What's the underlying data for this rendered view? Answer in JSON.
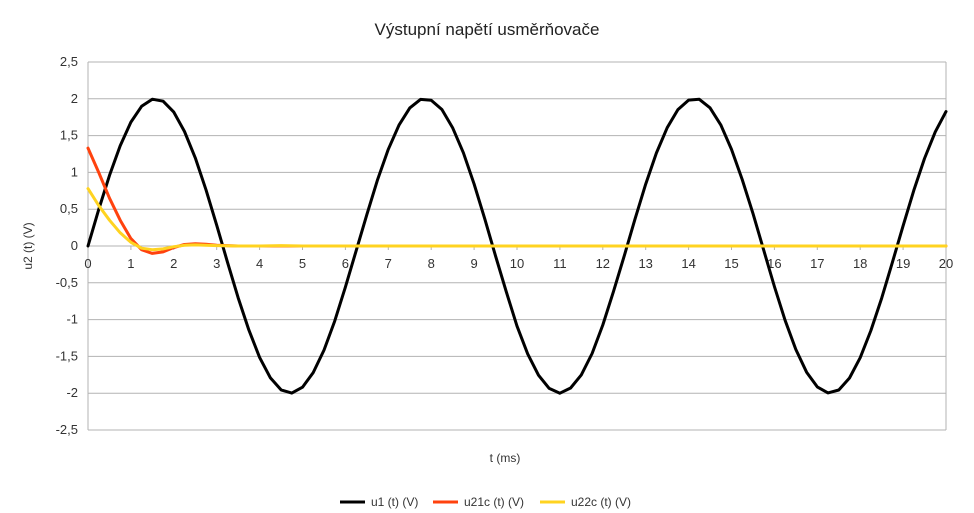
{
  "chart_data": {
    "type": "line",
    "title": "Výstupní napětí usměrňovače",
    "xlabel": "t (ms)",
    "ylabel": "u2 (t) (V)",
    "xlim": [
      0,
      20
    ],
    "ylim": [
      -2.5,
      2.5
    ],
    "x_ticks": [
      "0",
      "1",
      "2",
      "3",
      "4",
      "5",
      "6",
      "7",
      "8",
      "9",
      "10",
      "11",
      "12",
      "13",
      "14",
      "15",
      "16",
      "17",
      "18",
      "19",
      "20"
    ],
    "y_ticks": [
      "2,5",
      "2",
      "1,5",
      "1",
      "0,5",
      "0",
      "-0,5",
      "-1",
      "-1,5",
      "-2",
      "-2,5"
    ],
    "grid": true,
    "legend_position": "bottom",
    "series": [
      {
        "name": "u1 (t) (V)",
        "color": "#000000",
        "x": [
          0,
          0.25,
          0.5,
          0.75,
          1,
          1.25,
          1.5,
          1.75,
          2,
          2.25,
          2.5,
          2.75,
          3,
          3.25,
          3.5,
          3.75,
          4,
          4.25,
          4.5,
          4.75,
          5,
          5.25,
          5.5,
          5.75,
          6,
          6.25,
          6.5,
          6.75,
          7,
          7.25,
          7.5,
          7.75,
          8,
          8.25,
          8.5,
          8.75,
          9,
          9.25,
          9.5,
          9.75,
          10,
          10.25,
          10.5,
          10.75,
          11,
          11.25,
          11.5,
          11.75,
          12,
          12.25,
          12.5,
          12.75,
          13,
          13.25,
          13.5,
          13.75,
          14,
          14.25,
          14.5,
          14.75,
          15,
          15.25,
          15.5,
          15.75,
          16,
          16.25,
          16.5,
          16.75,
          17,
          17.25,
          17.5,
          17.75,
          18,
          18.25,
          18.5,
          18.75,
          19,
          19.25,
          19.5,
          19.75,
          20
        ],
        "values": [
          0,
          0.495,
          0.959,
          1.363,
          1.683,
          1.898,
          1.995,
          1.968,
          1.819,
          1.556,
          1.197,
          0.763,
          0.282,
          -0.216,
          -0.701,
          -1.142,
          -1.514,
          -1.79,
          -1.955,
          -1.998,
          -1.918,
          -1.72,
          -1.415,
          -1.021,
          -0.559,
          -0.066,
          0.43,
          0.902,
          1.314,
          1.643,
          1.876,
          1.992,
          1.98,
          1.854,
          1.608,
          1.266,
          0.842,
          0.368,
          -0.133,
          -0.622,
          -1.088,
          -1.466,
          -1.756,
          -1.935,
          -2.0,
          -1.93,
          -1.752,
          -1.46,
          -1.073,
          -0.617,
          -0.132,
          0.366,
          0.841,
          1.264,
          1.607,
          1.853,
          1.983,
          1.993,
          1.878,
          1.646,
          1.313,
          0.904,
          0.44,
          -0.056,
          -0.55,
          -1.009,
          -1.405,
          -1.714,
          -1.914,
          -1.996,
          -1.956,
          -1.794,
          -1.518,
          -1.148,
          -0.708,
          -0.222,
          0.275,
          0.755,
          1.189,
          1.551,
          1.826
        ]
      },
      {
        "name": "u21c (t) (V)",
        "color": "#ff420e",
        "x": [
          0,
          0.25,
          0.5,
          0.75,
          1,
          1.25,
          1.5,
          1.75,
          2,
          2.25,
          2.5,
          2.75,
          3,
          3.5,
          4,
          4.5,
          5,
          6,
          7,
          8,
          9,
          10,
          11,
          12,
          13,
          14,
          15,
          16,
          17,
          18,
          19,
          20
        ],
        "values": [
          1.33,
          1.0,
          0.65,
          0.35,
          0.1,
          -0.05,
          -0.1,
          -0.08,
          -0.02,
          0.02,
          0.03,
          0.025,
          0.01,
          0,
          0,
          0,
          0,
          0,
          0,
          0,
          0,
          0,
          0,
          0,
          0,
          0,
          0,
          0,
          0,
          0,
          0,
          0
        ]
      },
      {
        "name": "u22c (t) (V)",
        "color": "#ffd320",
        "x": [
          0,
          0.25,
          0.5,
          0.75,
          1,
          1.25,
          1.5,
          1.75,
          2,
          2.25,
          2.5,
          2.75,
          3,
          3.5,
          4,
          4.5,
          5,
          6,
          7,
          8,
          9,
          10,
          11,
          12,
          13,
          14,
          15,
          16,
          17,
          18,
          19,
          20
        ],
        "values": [
          0.78,
          0.55,
          0.35,
          0.18,
          0.05,
          -0.03,
          -0.05,
          -0.04,
          -0.01,
          0.01,
          0.015,
          0.01,
          0.005,
          0,
          0,
          0.005,
          0,
          0,
          0,
          0,
          0,
          0,
          0,
          0,
          0,
          0,
          0,
          0,
          0,
          0,
          0,
          0
        ]
      }
    ]
  }
}
